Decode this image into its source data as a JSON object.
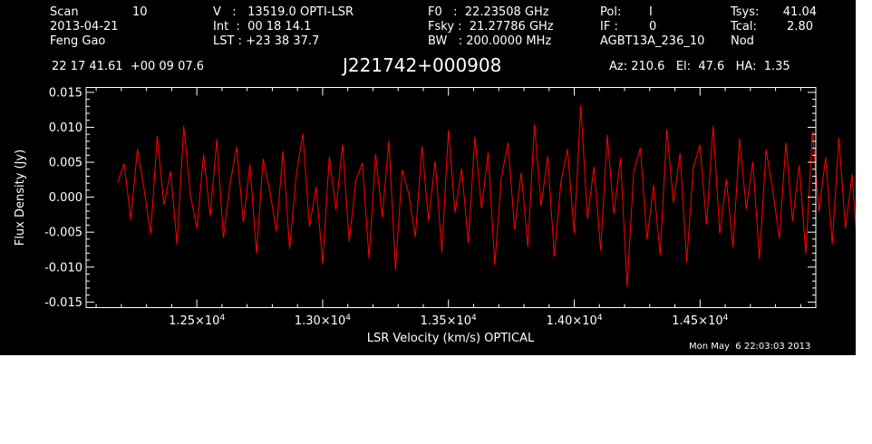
{
  "header": {
    "scan_label": "Scan",
    "scan_value": "10",
    "date": "2013-04-21",
    "observer": "Feng Gao",
    "v_line": "V   :   13519.0 OPTI-LSR",
    "int_line": "Int  :  00 18 14.1",
    "lst_line": "LST : +23 38 37.7",
    "f0_line": "F0   :  22.23508 GHz",
    "fsky_line": "Fsky :  21.27786 GHz",
    "bw_line": "BW   : 200.0000 MHz",
    "pol_label": "Pol:",
    "pol_value": "I",
    "if_label": "IF :",
    "if_value": "0",
    "project": "AGBT13A_236_10",
    "tsys_label": "Tsys:",
    "tsys_value": "41.04",
    "tcal_label": "Tcal:",
    "tcal_value": "2.80",
    "mode": "Nod",
    "coords": "22 17 41.61  +00 09 07.6",
    "source": "J221742+000908",
    "az_el_ha": "Az: 210.6   El:  47.6   HA:  1.35"
  },
  "footer": {
    "timestamp": "Mon May  6 22:03:03 2013"
  },
  "chart_data": {
    "type": "line",
    "title": "J221742+000908",
    "xlabel": "LSR Velocity (km/s) OPTICAL",
    "ylabel": "Flux Density (Jy)",
    "xlim": [
      12060,
      14960
    ],
    "ylim": [
      -0.0158,
      0.0157
    ],
    "x_ticks": [
      {
        "value": 12500,
        "mant": "1.25",
        "exp": "4"
      },
      {
        "value": 13000,
        "mant": "1.30",
        "exp": "4"
      },
      {
        "value": 13500,
        "mant": "1.35",
        "exp": "4"
      },
      {
        "value": 14000,
        "mant": "1.40",
        "exp": "4"
      },
      {
        "value": 14500,
        "mant": "1.45",
        "exp": "4"
      }
    ],
    "y_ticks": [
      {
        "value": 0.015,
        "label": "0.015"
      },
      {
        "value": 0.01,
        "label": "0.010"
      },
      {
        "value": 0.005,
        "label": "0.005"
      },
      {
        "value": 0.0,
        "label": "0.000"
      },
      {
        "value": -0.005,
        "label": "-0.005"
      },
      {
        "value": -0.01,
        "label": "-0.010"
      },
      {
        "value": -0.015,
        "label": "-0.015"
      }
    ],
    "series": [
      {
        "color": "#ff0000",
        "x_start": 12185,
        "x_step": 26.3,
        "values": [
          0.0021,
          0.0048,
          -0.0032,
          0.0069,
          0.0012,
          -0.0053,
          0.0088,
          -0.0011,
          0.0037,
          -0.0068,
          0.0102,
          0.0004,
          -0.0045,
          0.0061,
          -0.0027,
          0.0083,
          -0.0058,
          0.0019,
          0.0072,
          -0.0036,
          0.0047,
          -0.0081,
          0.0055,
          0.0009,
          -0.0049,
          0.0066,
          -0.0074,
          0.0031,
          0.0091,
          -0.0042,
          0.0015,
          -0.0095,
          0.0058,
          -0.0018,
          0.0076,
          -0.0063,
          0.0024,
          0.0049,
          -0.0088,
          0.0062,
          -0.0029,
          0.0081,
          -0.0104,
          0.0039,
          0.0005,
          -0.0057,
          0.0073,
          -0.0034,
          0.0052,
          -0.0079,
          0.0096,
          -0.0022,
          0.0041,
          -0.0066,
          0.0087,
          -0.0016,
          0.0064,
          -0.0097,
          0.0028,
          0.0078,
          -0.0046,
          0.0035,
          -0.0071,
          0.0104,
          -0.0013,
          0.0059,
          -0.0085,
          0.0022,
          0.0069,
          -0.0052,
          0.0132,
          -0.0031,
          0.0044,
          -0.0076,
          0.0089,
          -0.0024,
          0.0056,
          -0.0128,
          0.0037,
          0.0071,
          -0.0061,
          0.0018,
          -0.0083,
          0.0097,
          -0.0008,
          0.0063,
          -0.0093,
          0.0042,
          0.0075,
          -0.0039,
          0.0102,
          -0.0052,
          0.0026,
          -0.0072,
          0.0084,
          -0.0017,
          0.0051,
          -0.0089,
          0.0068,
          0.0011,
          -0.0059,
          0.0078,
          -0.0034,
          0.0046,
          -0.0081,
          0.0094,
          -0.0021,
          0.0057,
          -0.0067,
          0.0085,
          -0.0045,
          0.0033,
          -0.0098,
          0.0061,
          0.0014,
          -0.0056,
          0.0079,
          -0.0028,
          0.0052,
          -0.0074,
          0.0088
        ],
        "segments": [
          {
            "x_end": 12285,
            "mean": 0.002,
            "amp": 0.0055
          },
          {
            "x_end": 12800,
            "mean": 0.0003,
            "amp": 0.006
          },
          {
            "x_end": 13060,
            "mean": 0.0005,
            "amp": 0.007
          },
          {
            "x_end": 13420,
            "mean": -0.0008,
            "amp": 0.0062
          },
          {
            "x_end": 13560,
            "mean": 0.0022,
            "amp": 0.0068
          },
          {
            "x_end": 14100,
            "mean": 0.0,
            "amp": 0.0062
          },
          {
            "x_end": 14900,
            "mean": 0.0002,
            "amp": 0.0058
          }
        ]
      }
    ]
  }
}
